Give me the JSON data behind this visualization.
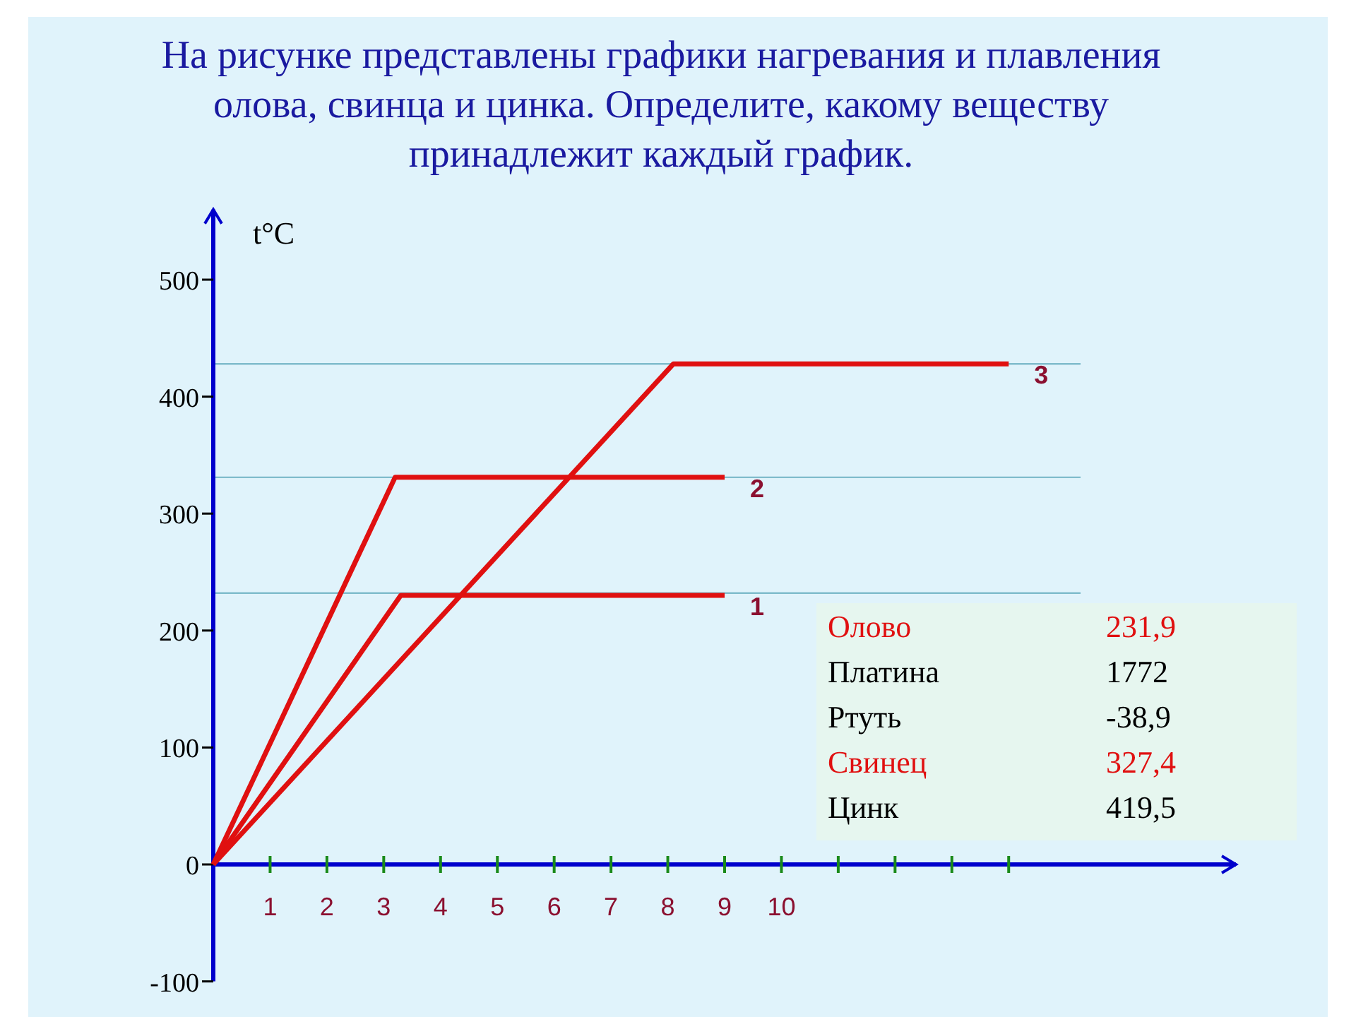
{
  "chart_data": [
    {
      "type": "line",
      "title": "На рисунке представлены графики нагревания и плавления\nолова, свинца и цинка. Определите, какому веществу\nпринадлежит каждый график.",
      "ylabel": "t°C",
      "xlim": [
        0,
        18
      ],
      "xticks": [
        1,
        2,
        3,
        4,
        5,
        6,
        7,
        8,
        9,
        10,
        {
          "value": 11,
          "label": null
        },
        {
          "value": 12,
          "label": null
        },
        {
          "value": 13,
          "label": null
        },
        {
          "value": 14,
          "label": null
        }
      ],
      "ylim": [
        -100,
        560
      ],
      "yticks": [
        -100,
        0,
        100,
        200,
        300,
        400,
        500
      ],
      "series": [
        {
          "name": "1",
          "color": "#e01010",
          "x": [
            0,
            3.3,
            9
          ],
          "values": [
            0,
            230,
            230
          ]
        },
        {
          "name": "2",
          "color": "#e01010",
          "x": [
            0,
            3.2,
            9
          ],
          "values": [
            0,
            331,
            331
          ]
        },
        {
          "name": "3",
          "color": "#e01010",
          "x": [
            0,
            8.1,
            14
          ],
          "values": [
            0,
            428,
            428
          ]
        }
      ],
      "ref_lines": [
        {
          "axis": "y",
          "value": 232,
          "color": "#80bccc"
        },
        {
          "axis": "y",
          "value": 331,
          "color": "#80bccc"
        },
        {
          "axis": "y",
          "value": 428,
          "color": "#80bccc"
        }
      ],
      "grid": false,
      "marker": "none",
      "line_style": "solid",
      "legend": false
    },
    {
      "type": "other",
      "categories": [
        "Олово",
        "Платина",
        "Ртуть",
        "Свинец",
        "Цинк"
      ],
      "value_labels": [
        "231,9",
        "1772",
        "-38,9",
        "327,4",
        "419,5"
      ],
      "colors": [
        "#e01010",
        "#000000",
        "#000000",
        "#e01010",
        "#000000"
      ]
    }
  ]
}
